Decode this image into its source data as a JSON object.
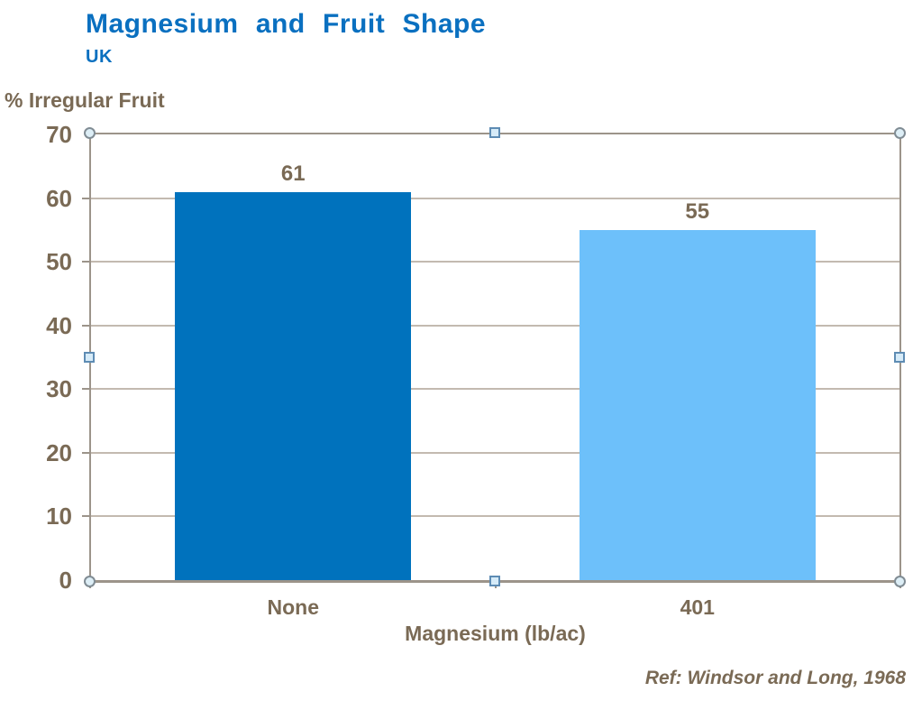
{
  "chart_data": {
    "type": "bar",
    "title": "Magnesium and Fruit Shape",
    "subtitle": "UK",
    "y_axis_label": "% Irregular Fruit",
    "x_axis_label": "Magnesium (lb/ac)",
    "categories": [
      "None",
      "401"
    ],
    "values": [
      61,
      55
    ],
    "data_labels": [
      "61",
      "55"
    ],
    "bar_colors": [
      "#0072BD",
      "#6DC0FA"
    ],
    "ylim": [
      0,
      70
    ],
    "yticks": [
      0,
      10,
      20,
      30,
      40,
      50,
      60,
      70
    ],
    "grid": true,
    "legend": "none",
    "reference": "Ref: Windsor and Long, 1968"
  },
  "colors": {
    "title_blue": "#0A70C0",
    "text_brown": "#7A6A55",
    "axis_gray": "#9C948A",
    "gridline": "#C3BAB0",
    "bar_dark_blue": "#0072BD",
    "bar_light_blue": "#6DC0FA",
    "handle_fill": "#DDEEF6",
    "handle_border": "#5E8CB4"
  },
  "selection": {
    "state": "chart-selected",
    "handles": [
      "top-left",
      "top-center",
      "top-right",
      "middle-left",
      "middle-right",
      "bottom-left",
      "bottom-center",
      "bottom-right"
    ]
  }
}
